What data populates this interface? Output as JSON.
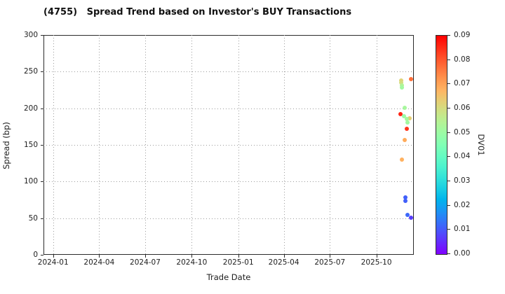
{
  "title": "(4755)   Spread Trend based on Investor's BUY Transactions",
  "chart_data": {
    "type": "scatter",
    "title": "(4755)   Spread Trend based on Investor's BUY Transactions",
    "xlabel": "Trade Date",
    "ylabel": "Spread (bp)",
    "ylim": [
      0,
      300
    ],
    "yticks": [
      0,
      50,
      100,
      150,
      200,
      250,
      300
    ],
    "xticks": [
      "2024-01",
      "2024-04",
      "2024-07",
      "2024-10",
      "2025-01",
      "2025-04",
      "2025-07",
      "2025-10"
    ],
    "x_range": [
      "2023-12-13",
      "2025-12-14"
    ],
    "grid": true,
    "legend_position": "none",
    "colorbar": {
      "label": "DV01",
      "min": 0.0,
      "max": 0.09,
      "ticks": [
        "0.00",
        "0.01",
        "0.02",
        "0.03",
        "0.04",
        "0.05",
        "0.06",
        "0.07",
        "0.08",
        "0.09"
      ],
      "colormap": "rainbow",
      "color_min_hex": "#8000FF",
      "color_max_hex": "#FF0000"
    },
    "points": [
      {
        "date": "2025-11-19",
        "spread": 238,
        "dv01": 0.062
      },
      {
        "date": "2025-11-19",
        "spread": 235,
        "dv01": 0.06
      },
      {
        "date": "2025-11-20",
        "spread": 231,
        "dv01": 0.054
      },
      {
        "date": "2025-11-20",
        "spread": 228,
        "dv01": 0.051
      },
      {
        "date": "2025-12-09",
        "spread": 240,
        "dv01": 0.077
      },
      {
        "date": "2025-11-26",
        "spread": 201,
        "dv01": 0.052
      },
      {
        "date": "2025-11-18",
        "spread": 192,
        "dv01": 0.086
      },
      {
        "date": "2025-11-25",
        "spread": 189,
        "dv01": 0.05
      },
      {
        "date": "2025-12-05",
        "spread": 186,
        "dv01": 0.063
      },
      {
        "date": "2025-11-30",
        "spread": 185,
        "dv01": 0.052
      },
      {
        "date": "2025-12-01",
        "spread": 181,
        "dv01": 0.051
      },
      {
        "date": "2025-11-30",
        "spread": 172,
        "dv01": 0.084
      },
      {
        "date": "2025-11-26",
        "spread": 157,
        "dv01": 0.069
      },
      {
        "date": "2025-11-20",
        "spread": 130,
        "dv01": 0.068
      },
      {
        "date": "2025-11-27",
        "spread": 78,
        "dv01": 0.011
      },
      {
        "date": "2025-11-27",
        "spread": 74,
        "dv01": 0.011
      },
      {
        "date": "2025-12-02",
        "spread": 54,
        "dv01": 0.012
      },
      {
        "date": "2025-12-09",
        "spread": 51,
        "dv01": 0.007
      }
    ]
  }
}
